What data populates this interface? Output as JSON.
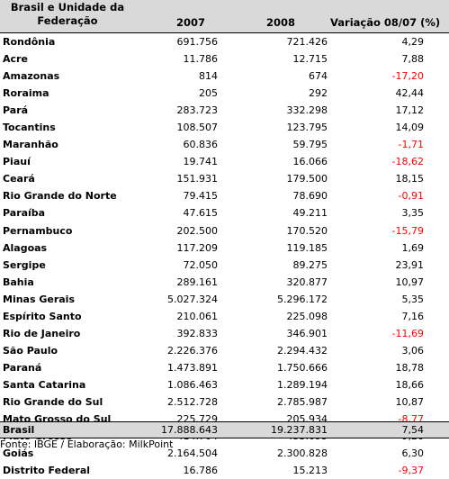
{
  "header": {
    "region_line1": "Brasil e Unidade da",
    "region_line2": "Federação",
    "col_2007": "2007",
    "col_2008": "2008",
    "col_var": "Variação 08/07 (%)"
  },
  "rows": [
    {
      "name": "Rondônia",
      "v2007": "691.756",
      "v2008": "721.426",
      "var": "4,29",
      "negative": false
    },
    {
      "name": "Acre",
      "v2007": "11.786",
      "v2008": "12.715",
      "var": "7,88",
      "negative": false
    },
    {
      "name": "Amazonas",
      "v2007": "814",
      "v2008": "674",
      "var": "-17,20",
      "negative": true
    },
    {
      "name": "Roraima",
      "v2007": "205",
      "v2008": "292",
      "var": "42,44",
      "negative": false
    },
    {
      "name": "Pará",
      "v2007": "283.723",
      "v2008": "332.298",
      "var": "17,12",
      "negative": false
    },
    {
      "name": "Tocantins",
      "v2007": "108.507",
      "v2008": "123.795",
      "var": "14,09",
      "negative": false
    },
    {
      "name": "Maranhão",
      "v2007": "60.836",
      "v2008": "59.795",
      "var": "-1,71",
      "negative": true
    },
    {
      "name": "Piauí",
      "v2007": "19.741",
      "v2008": "16.066",
      "var": "-18,62",
      "negative": true
    },
    {
      "name": "Ceará",
      "v2007": "151.931",
      "v2008": "179.500",
      "var": "18,15",
      "negative": false
    },
    {
      "name": "Rio Grande do Norte",
      "v2007": "79.415",
      "v2008": "78.690",
      "var": "-0,91",
      "negative": true
    },
    {
      "name": "Paraíba",
      "v2007": "47.615",
      "v2008": "49.211",
      "var": "3,35",
      "negative": false
    },
    {
      "name": "Pernambuco",
      "v2007": "202.500",
      "v2008": "170.520",
      "var": "-15,79",
      "negative": true
    },
    {
      "name": "Alagoas",
      "v2007": "117.209",
      "v2008": "119.185",
      "var": "1,69",
      "negative": false
    },
    {
      "name": "Sergipe",
      "v2007": "72.050",
      "v2008": "89.275",
      "var": "23,91",
      "negative": false
    },
    {
      "name": "Bahia",
      "v2007": "289.161",
      "v2008": "320.877",
      "var": "10,97",
      "negative": false
    },
    {
      "name": "Minas Gerais",
      "v2007": "5.027.324",
      "v2008": "5.296.172",
      "var": "5,35",
      "negative": false
    },
    {
      "name": "Espírito Santo",
      "v2007": "210.061",
      "v2008": "225.098",
      "var": "7,16",
      "negative": false
    },
    {
      "name": "Rio de Janeiro",
      "v2007": "392.833",
      "v2008": "346.901",
      "var": "-11,69",
      "negative": true
    },
    {
      "name": "São Paulo",
      "v2007": "2.226.376",
      "v2008": "2.294.432",
      "var": "3,06",
      "negative": false
    },
    {
      "name": "Paraná",
      "v2007": "1.473.891",
      "v2008": "1.750.666",
      "var": "18,78",
      "negative": false
    },
    {
      "name": "Santa Catarina",
      "v2007": "1.086.463",
      "v2008": "1.289.194",
      "var": "18,66",
      "negative": false
    },
    {
      "name": "Rio Grande do Sul",
      "v2007": "2.512.728",
      "v2008": "2.785.987",
      "var": "10,87",
      "negative": false
    },
    {
      "name": "Mato Grosso do Sul",
      "v2007": "225.729",
      "v2008": "205.934",
      "var": "-8,77",
      "negative": true
    },
    {
      "name": "Mato Grosso",
      "v2007": "414.704",
      "v2008": "453.095",
      "var": "9,26",
      "negative": false
    },
    {
      "name": "Goiás",
      "v2007": "2.164.504",
      "v2008": "2.300.828",
      "var": "6,30",
      "negative": false
    },
    {
      "name": "Distrito Federal",
      "v2007": "16.786",
      "v2008": "15.213",
      "var": "-9,37",
      "negative": true
    }
  ],
  "total": {
    "name": "Brasil",
    "v2007": "17.888.643",
    "v2008": "19.237.831",
    "var": "7,54"
  },
  "source": "Fonte: IBGE / Elaboração: MilkPoint",
  "colors": {
    "header_bg": "#d9d9d9",
    "negative": "#ff0000"
  }
}
